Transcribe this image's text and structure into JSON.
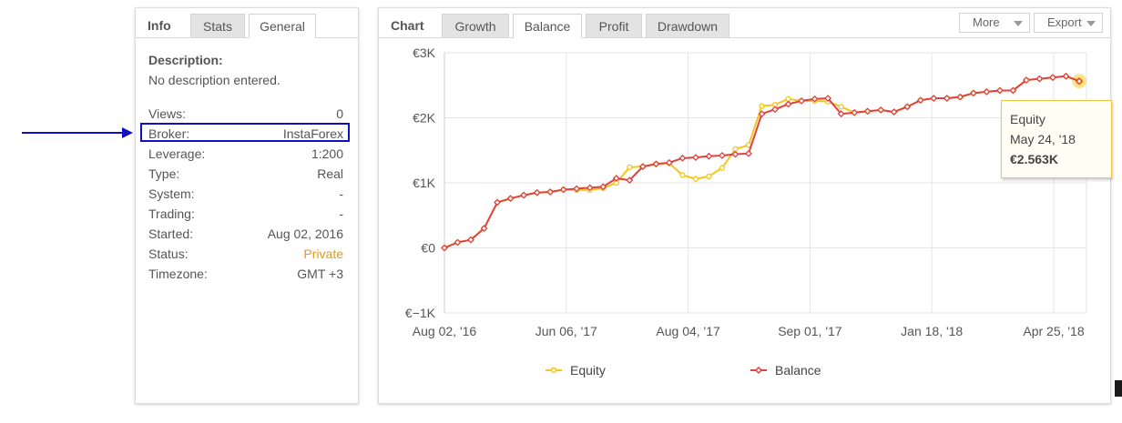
{
  "info": {
    "tabs": [
      {
        "label": "Info"
      },
      {
        "label": "Stats"
      },
      {
        "label": "General"
      }
    ],
    "description_label": "Description:",
    "description_text": "No description entered.",
    "rows": [
      {
        "label": "Views:",
        "value": "0"
      },
      {
        "label": "Broker:",
        "value": "InstaForex"
      },
      {
        "label": "Leverage:",
        "value": "1:200"
      },
      {
        "label": "Type:",
        "value": "Real"
      },
      {
        "label": "System:",
        "value": "-"
      },
      {
        "label": "Trading:",
        "value": "-"
      },
      {
        "label": "Started:",
        "value": "Aug 02, 2016"
      },
      {
        "label": "Status:",
        "value": "Private"
      },
      {
        "label": "Timezone:",
        "value": "GMT +3"
      }
    ],
    "status_color": "#e49a1a"
  },
  "chart_panel": {
    "title": "Chart",
    "tabs": [
      {
        "label": "Growth"
      },
      {
        "label": "Balance"
      },
      {
        "label": "Profit"
      },
      {
        "label": "Drawdown"
      }
    ],
    "active_tab": "Balance",
    "buttons": {
      "more": "More",
      "export": "Export"
    }
  },
  "chart_data": {
    "type": "line",
    "y_ticks": [
      "€3K",
      "€2K",
      "€1K",
      "€0",
      "€−1K"
    ],
    "x_ticks": [
      "Aug 02, '16",
      "Jun 06, '17",
      "Aug 04, '17",
      "Sep 01, '17",
      "Jan 18, '18",
      "Apr 25, '18"
    ],
    "ylim": [
      -1000,
      3000
    ],
    "grid": true,
    "legend_position": "bottom",
    "series": [
      {
        "name": "Equity",
        "color": "#f5c518",
        "marker": "circle",
        "values": [
          0,
          85,
          125,
          300,
          700,
          760,
          810,
          850,
          860,
          895,
          890,
          890,
          920,
          1000,
          1240,
          1250,
          1290,
          1300,
          1120,
          1060,
          1100,
          1230,
          1520,
          1580,
          2180,
          2200,
          2290,
          2260,
          2260,
          2250,
          2170,
          2080,
          2100,
          2120,
          2090,
          2170,
          2270,
          2300,
          2300,
          2320,
          2380,
          2400,
          2420,
          2420,
          2580,
          2600,
          2620,
          2640,
          2563
        ]
      },
      {
        "name": "Balance",
        "color": "#e04040",
        "marker": "diamond",
        "values": [
          0,
          85,
          125,
          300,
          700,
          760,
          810,
          850,
          860,
          895,
          910,
          925,
          940,
          1070,
          1040,
          1250,
          1290,
          1310,
          1380,
          1390,
          1410,
          1420,
          1440,
          1450,
          2060,
          2130,
          2210,
          2260,
          2290,
          2300,
          2060,
          2080,
          2100,
          2120,
          2090,
          2170,
          2270,
          2300,
          2300,
          2320,
          2380,
          2400,
          2420,
          2420,
          2580,
          2600,
          2620,
          2640,
          2563
        ]
      }
    ]
  },
  "tooltip": {
    "series": "Equity",
    "date": "May 24, '18",
    "value": "€2.563K"
  }
}
